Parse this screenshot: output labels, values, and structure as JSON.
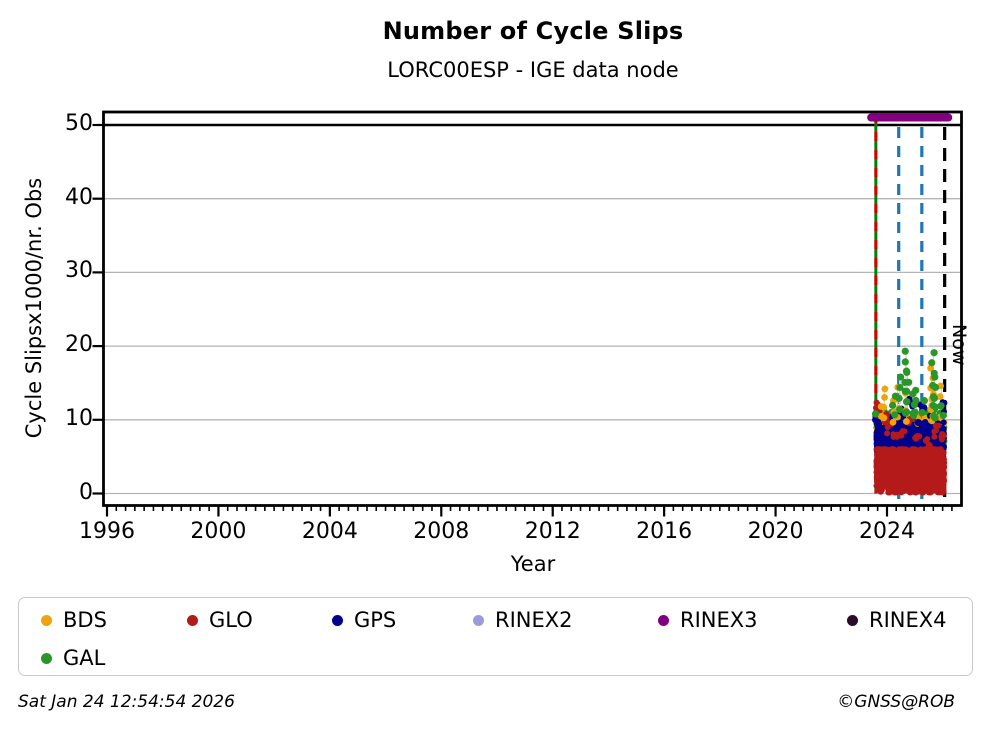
{
  "header": {
    "title": "Number of Cycle Slips",
    "subtitle": "LORC00ESP - IGE data node"
  },
  "footer": {
    "timestamp": "Sat Jan 24 12:54:54 2026",
    "copyright": "©GNSS@ROB"
  },
  "legend": {
    "items": [
      {
        "label": "BDS",
        "color": "#f0a30a"
      },
      {
        "label": "GLO",
        "color": "#b51a1a"
      },
      {
        "label": "GPS",
        "color": "#00008b"
      },
      {
        "label": "RINEX2",
        "color": "#9d99dd"
      },
      {
        "label": "RINEX3",
        "color": "#800080"
      },
      {
        "label": "RINEX4",
        "color": "#2b0a2b"
      },
      {
        "label": "GAL",
        "color": "#2a962a"
      }
    ]
  },
  "chart_data": {
    "type": "scatter",
    "title": "Number of Cycle Slips",
    "subtitle": "LORC00ESP - IGE data node",
    "xlabel": "Year",
    "ylabel": "Cycle Slipsx1000/nr. Obs",
    "xlim": [
      1995.85,
      2026.7
    ],
    "ylim": [
      -1.6,
      51.8
    ],
    "xticks": [
      1996,
      2000,
      2004,
      2008,
      2012,
      2016,
      2020,
      2024
    ],
    "yticks": [
      0,
      10,
      20,
      30,
      40,
      50
    ],
    "x_minor_step": 0.3333,
    "grid": "horizontal-gray",
    "legend_position": "bottom",
    "now_label": "Now",
    "annotations": {
      "event_lines": [
        {
          "x": 2023.6,
          "style": "solid",
          "color": "#008000",
          "name": "data-start-gal"
        },
        {
          "x": 2023.6,
          "style": "dashed",
          "color": "#d40000",
          "name": "data-start-glo"
        },
        {
          "x": 2024.42,
          "style": "dashed",
          "color": "#1f77b4",
          "name": "event-blue-1"
        },
        {
          "x": 2025.25,
          "style": "dashed",
          "color": "#1f77b4",
          "name": "event-blue-2"
        },
        {
          "x": 2026.07,
          "style": "dashed",
          "color": "#000000",
          "name": "now-line"
        }
      ],
      "availability_bar": {
        "name": "RINEX3",
        "x_start": 2023.43,
        "x_end": 2026.2,
        "y": 51.2,
        "color": "#800080"
      }
    },
    "series": [
      {
        "name": "GAL",
        "color": "#2a962a",
        "marker_r": 3.6,
        "band": {
          "t0": 2023.62,
          "t1": 2026.05,
          "n": 430,
          "mean": 8.7,
          "sigma": 0.95,
          "wave_amp": 0.55,
          "wave_freq": 4.5,
          "ymin": 6.1,
          "ymax": 11.8
        },
        "spikes": [
          [
            2023.63,
            10.8
          ],
          [
            2024.25,
            13.2
          ],
          [
            2024.45,
            15.8
          ],
          [
            2024.68,
            19.3
          ],
          [
            2024.73,
            16.6
          ],
          [
            2024.95,
            13.5
          ],
          [
            2025.05,
            14.0
          ],
          [
            2025.3,
            12.6
          ],
          [
            2025.66,
            19.1
          ],
          [
            2025.7,
            15.8
          ],
          [
            2025.98,
            11.9
          ]
        ]
      },
      {
        "name": "BDS",
        "color": "#f0a30a",
        "marker_r": 3.4,
        "band": {
          "t0": 2023.62,
          "t1": 2026.05,
          "n": 270,
          "mean": 8.1,
          "sigma": 1.0,
          "wave_amp": 0.5,
          "wave_freq": 3.8,
          "ymin": 5.9,
          "ymax": 11.2
        },
        "spikes": [
          [
            2023.75,
            11.8
          ],
          [
            2023.9,
            14.2
          ],
          [
            2024.2,
            12.6
          ],
          [
            2024.38,
            14.4
          ],
          [
            2024.65,
            13.6
          ],
          [
            2025.6,
            17.0
          ],
          [
            2025.63,
            13.5
          ],
          [
            2025.95,
            14.6
          ]
        ]
      },
      {
        "name": "GPS",
        "color": "#00008b",
        "marker_r": 3.0,
        "band": {
          "t0": 2023.62,
          "t1": 2026.05,
          "n": 1700,
          "mean": 7.0,
          "sigma": 1.0,
          "wave_amp": 0.55,
          "wave_freq": 4.2,
          "ymin": 4.6,
          "ymax": 9.7
        },
        "spikes": [
          [
            2023.64,
            10.9
          ],
          [
            2024.05,
            11.4
          ],
          [
            2024.5,
            11.9
          ],
          [
            2024.88,
            13.4
          ],
          [
            2025.25,
            12.9
          ],
          [
            2025.6,
            10.7
          ],
          [
            2025.98,
            12.5
          ]
        ]
      },
      {
        "name": "GLO",
        "color": "#b51a1a",
        "marker_r": 3.0,
        "band": {
          "t0": 2023.62,
          "t1": 2026.05,
          "n": 2000,
          "mean": 3.1,
          "sigma": 1.35,
          "wave_amp": 0.6,
          "wave_freq": 4.0,
          "ymin": 0.15,
          "ymax": 6.0
        },
        "spikes": [
          [
            2023.65,
            12.6
          ],
          [
            2023.71,
            11.2
          ],
          [
            2023.95,
            10.9
          ],
          [
            2024.08,
            9.6
          ],
          [
            2024.3,
            8.9
          ],
          [
            2024.6,
            9.4
          ],
          [
            2024.85,
            10.2
          ],
          [
            2025.1,
            8.7
          ],
          [
            2025.45,
            7.8
          ],
          [
            2025.78,
            9.3
          ],
          [
            2026.0,
            8.6
          ]
        ]
      }
    ]
  }
}
